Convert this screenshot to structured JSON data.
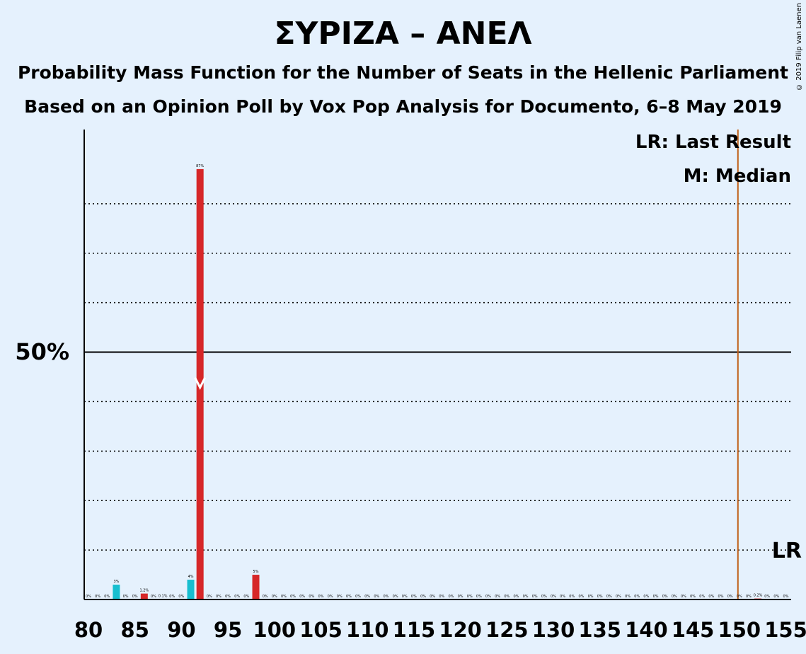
{
  "title": "ΣΥΡΙΖΑ – ΑΝΕΛ",
  "subtitle1": "Probability Mass Function for the Number of Seats in the Hellenic Parliament",
  "subtitle2": "Based on an Opinion Poll by Vox Pop Analysis for Documento, 6–8 May 2019",
  "copyright": "© 2019 Filip van Laenen",
  "legend": {
    "last_result": "LR: Last Result",
    "median": "M: Median"
  },
  "lr_marker_label": "LR",
  "y_tick_label": "50%",
  "colors": {
    "background": "#e5f1fd",
    "bar_red": "#d62728",
    "bar_blue": "#17becf",
    "last_result_line": "#c0621b",
    "median_marker": "#ffffff"
  },
  "chart_data": {
    "type": "bar",
    "x_range": [
      80,
      155
    ],
    "ylim": [
      0,
      95
    ],
    "y_ticks": [
      10,
      20,
      30,
      40,
      50,
      60,
      70,
      80
    ],
    "y_labeled_tick": 50,
    "x_ticks": [
      80,
      85,
      90,
      95,
      100,
      105,
      110,
      115,
      120,
      125,
      130,
      135,
      140,
      145,
      150,
      155
    ],
    "last_result": 150,
    "median": 92,
    "bars": [
      {
        "seats": 80,
        "value": 0,
        "label": "0%",
        "color": "red"
      },
      {
        "seats": 81,
        "value": 0,
        "label": "0%",
        "color": "red"
      },
      {
        "seats": 82,
        "value": 0,
        "label": "0%",
        "color": "red"
      },
      {
        "seats": 83,
        "value": 3,
        "label": "3%",
        "color": "blue"
      },
      {
        "seats": 84,
        "value": 0,
        "label": "0%",
        "color": "red"
      },
      {
        "seats": 85,
        "value": 0,
        "label": "0%",
        "color": "red"
      },
      {
        "seats": 86,
        "value": 1.2,
        "label": "1.2%",
        "color": "red"
      },
      {
        "seats": 87,
        "value": 0,
        "label": "0%",
        "color": "red"
      },
      {
        "seats": 88,
        "value": 0.1,
        "label": "0.1%",
        "color": "red"
      },
      {
        "seats": 89,
        "value": 0,
        "label": "0%",
        "color": "red"
      },
      {
        "seats": 90,
        "value": 0,
        "label": "0%",
        "color": "red"
      },
      {
        "seats": 91,
        "value": 4,
        "label": "4%",
        "color": "blue"
      },
      {
        "seats": 92,
        "value": 87,
        "label": "87%",
        "color": "red"
      },
      {
        "seats": 93,
        "value": 0,
        "label": "0%",
        "color": "red"
      },
      {
        "seats": 94,
        "value": 0,
        "label": "0%",
        "color": "red"
      },
      {
        "seats": 95,
        "value": 0,
        "label": "0%",
        "color": "red"
      },
      {
        "seats": 96,
        "value": 0,
        "label": "0%",
        "color": "red"
      },
      {
        "seats": 97,
        "value": 0,
        "label": "0%",
        "color": "red"
      },
      {
        "seats": 98,
        "value": 5,
        "label": "5%",
        "color": "red"
      },
      {
        "seats": 99,
        "value": 0,
        "label": "0%",
        "color": "red"
      },
      {
        "seats": 100,
        "value": 0,
        "label": "0%",
        "color": "red"
      },
      {
        "seats": 101,
        "value": 0,
        "label": "0%",
        "color": "red"
      },
      {
        "seats": 102,
        "value": 0,
        "label": "0%",
        "color": "red"
      },
      {
        "seats": 103,
        "value": 0,
        "label": "0%",
        "color": "red"
      },
      {
        "seats": 104,
        "value": 0,
        "label": "0%",
        "color": "red"
      },
      {
        "seats": 105,
        "value": 0,
        "label": "0%",
        "color": "red"
      },
      {
        "seats": 106,
        "value": 0,
        "label": "0%",
        "color": "red"
      },
      {
        "seats": 107,
        "value": 0,
        "label": "0%",
        "color": "red"
      },
      {
        "seats": 108,
        "value": 0,
        "label": "0%",
        "color": "red"
      },
      {
        "seats": 109,
        "value": 0,
        "label": "0%",
        "color": "red"
      },
      {
        "seats": 110,
        "value": 0,
        "label": "0%",
        "color": "red"
      },
      {
        "seats": 111,
        "value": 0,
        "label": "0%",
        "color": "red"
      },
      {
        "seats": 112,
        "value": 0,
        "label": "0%",
        "color": "red"
      },
      {
        "seats": 113,
        "value": 0,
        "label": "0%",
        "color": "red"
      },
      {
        "seats": 114,
        "value": 0,
        "label": "0%",
        "color": "red"
      },
      {
        "seats": 115,
        "value": 0,
        "label": "0%",
        "color": "red"
      },
      {
        "seats": 116,
        "value": 0,
        "label": "0%",
        "color": "red"
      },
      {
        "seats": 117,
        "value": 0,
        "label": "0%",
        "color": "red"
      },
      {
        "seats": 118,
        "value": 0,
        "label": "0%",
        "color": "red"
      },
      {
        "seats": 119,
        "value": 0,
        "label": "0%",
        "color": "red"
      },
      {
        "seats": 120,
        "value": 0,
        "label": "0%",
        "color": "red"
      },
      {
        "seats": 121,
        "value": 0,
        "label": "0%",
        "color": "red"
      },
      {
        "seats": 122,
        "value": 0,
        "label": "0%",
        "color": "red"
      },
      {
        "seats": 123,
        "value": 0,
        "label": "0%",
        "color": "red"
      },
      {
        "seats": 124,
        "value": 0,
        "label": "0%",
        "color": "red"
      },
      {
        "seats": 125,
        "value": 0,
        "label": "0%",
        "color": "red"
      },
      {
        "seats": 126,
        "value": 0,
        "label": "0%",
        "color": "red"
      },
      {
        "seats": 127,
        "value": 0,
        "label": "0%",
        "color": "red"
      },
      {
        "seats": 128,
        "value": 0,
        "label": "0%",
        "color": "red"
      },
      {
        "seats": 129,
        "value": 0,
        "label": "0%",
        "color": "red"
      },
      {
        "seats": 130,
        "value": 0,
        "label": "0%",
        "color": "red"
      },
      {
        "seats": 131,
        "value": 0,
        "label": "0%",
        "color": "red"
      },
      {
        "seats": 132,
        "value": 0,
        "label": "0%",
        "color": "red"
      },
      {
        "seats": 133,
        "value": 0,
        "label": "0%",
        "color": "red"
      },
      {
        "seats": 134,
        "value": 0,
        "label": "0%",
        "color": "red"
      },
      {
        "seats": 135,
        "value": 0,
        "label": "0%",
        "color": "red"
      },
      {
        "seats": 136,
        "value": 0,
        "label": "0%",
        "color": "red"
      },
      {
        "seats": 137,
        "value": 0,
        "label": "0%",
        "color": "red"
      },
      {
        "seats": 138,
        "value": 0,
        "label": "0%",
        "color": "red"
      },
      {
        "seats": 139,
        "value": 0,
        "label": "0%",
        "color": "red"
      },
      {
        "seats": 140,
        "value": 0,
        "label": "0%",
        "color": "red"
      },
      {
        "seats": 141,
        "value": 0,
        "label": "0%",
        "color": "red"
      },
      {
        "seats": 142,
        "value": 0,
        "label": "0%",
        "color": "red"
      },
      {
        "seats": 143,
        "value": 0,
        "label": "0%",
        "color": "red"
      },
      {
        "seats": 144,
        "value": 0,
        "label": "0%",
        "color": "red"
      },
      {
        "seats": 145,
        "value": 0,
        "label": "0%",
        "color": "red"
      },
      {
        "seats": 146,
        "value": 0,
        "label": "0%",
        "color": "red"
      },
      {
        "seats": 147,
        "value": 0,
        "label": "0%",
        "color": "red"
      },
      {
        "seats": 148,
        "value": 0,
        "label": "0%",
        "color": "red"
      },
      {
        "seats": 149,
        "value": 0,
        "label": "0%",
        "color": "red"
      },
      {
        "seats": 150,
        "value": 0,
        "label": "0%",
        "color": "red"
      },
      {
        "seats": 151,
        "value": 0,
        "label": "0%",
        "color": "red"
      },
      {
        "seats": 152,
        "value": 0.2,
        "label": "0.2%",
        "color": "red"
      },
      {
        "seats": 153,
        "value": 0,
        "label": "0%",
        "color": "red"
      },
      {
        "seats": 154,
        "value": 0,
        "label": "0%",
        "color": "red"
      },
      {
        "seats": 155,
        "value": 0,
        "label": "0%",
        "color": "red"
      }
    ]
  }
}
